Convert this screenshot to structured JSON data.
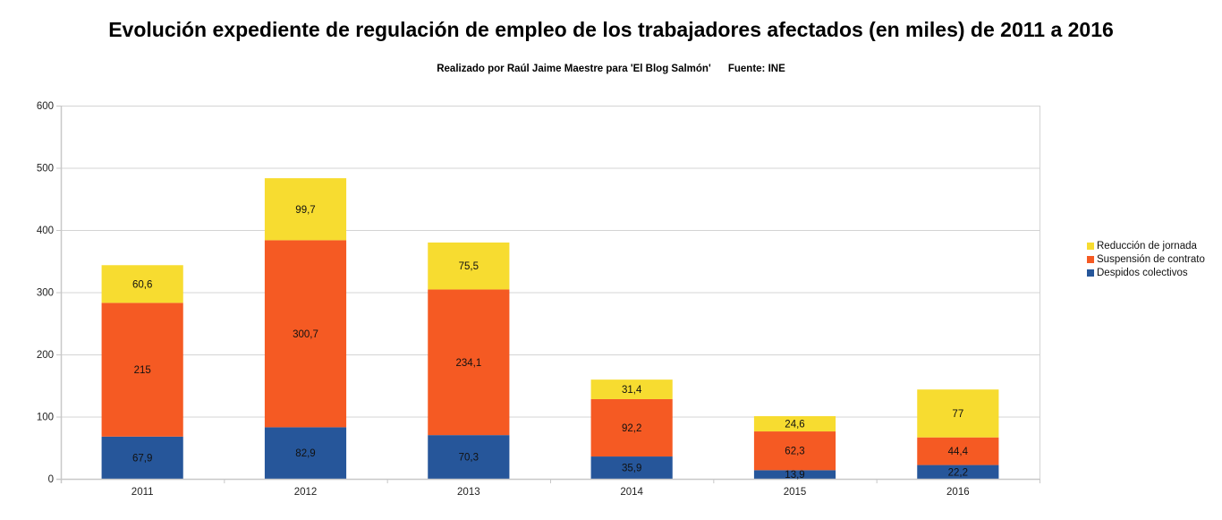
{
  "chart_data": {
    "type": "bar",
    "stacked": true,
    "title": "Evolución expediente de regulación de empleo de los trabajadores afectados (en miles) de 2011 a 2016",
    "subtitle": "Realizado por Raúl Jaime Maestre para 'El Blog Salmón'      Fuente: INE",
    "xlabel": "",
    "ylabel": "",
    "ylim": [
      0,
      600
    ],
    "yticks": [
      0,
      100,
      200,
      300,
      400,
      500,
      600
    ],
    "grid": true,
    "legend_position": "right",
    "categories": [
      "2011",
      "2012",
      "2013",
      "2014",
      "2015",
      "2016"
    ],
    "series": [
      {
        "name": "Despidos colectivos",
        "color": "#26569a",
        "values": [
          67.9,
          82.9,
          70.3,
          35.9,
          13.9,
          22.2
        ],
        "labels": [
          "67,9",
          "82,9",
          "70,3",
          "35,9",
          "13,9",
          "22,2"
        ]
      },
      {
        "name": "Suspensión de contrato",
        "color": "#f55a23",
        "values": [
          215,
          300.7,
          234.1,
          92.2,
          62.3,
          44.4
        ],
        "labels": [
          "215",
          "300,7",
          "234,1",
          "92,2",
          "62,3",
          "44,4"
        ]
      },
      {
        "name": "Reducción de jornada",
        "color": "#f7dc30",
        "values": [
          60.6,
          99.7,
          75.5,
          31.4,
          24.6,
          77
        ],
        "labels": [
          "60,6",
          "99,7",
          "75,5",
          "31,4",
          "24,6",
          "77"
        ]
      }
    ],
    "legend_order": [
      "Reducción de jornada",
      "Suspensión de contrato",
      "Despidos colectivos"
    ]
  }
}
